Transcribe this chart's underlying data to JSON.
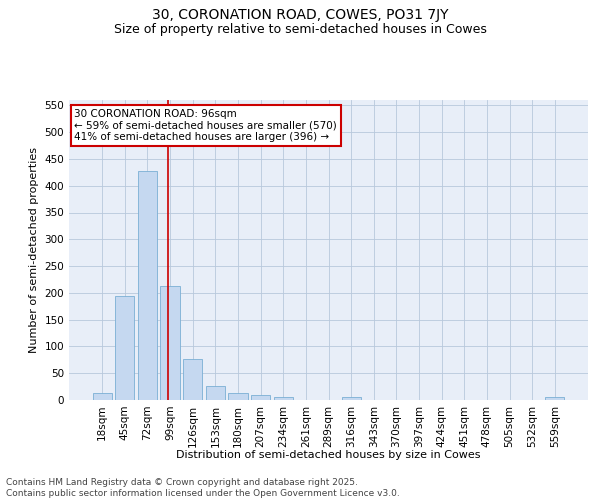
{
  "title": "30, CORONATION ROAD, COWES, PO31 7JY",
  "subtitle": "Size of property relative to semi-detached houses in Cowes",
  "xlabel": "Distribution of semi-detached houses by size in Cowes",
  "ylabel": "Number of semi-detached properties",
  "footer_line1": "Contains HM Land Registry data © Crown copyright and database right 2025.",
  "footer_line2": "Contains public sector information licensed under the Open Government Licence v3.0.",
  "bin_labels": [
    "18sqm",
    "45sqm",
    "72sqm",
    "99sqm",
    "126sqm",
    "153sqm",
    "180sqm",
    "207sqm",
    "234sqm",
    "261sqm",
    "289sqm",
    "316sqm",
    "343sqm",
    "370sqm",
    "397sqm",
    "424sqm",
    "451sqm",
    "478sqm",
    "505sqm",
    "532sqm",
    "559sqm"
  ],
  "bar_values": [
    13,
    195,
    428,
    213,
    77,
    27,
    13,
    10,
    5,
    0,
    0,
    5,
    0,
    0,
    0,
    0,
    0,
    0,
    0,
    0,
    5
  ],
  "bar_color": "#c5d8f0",
  "bar_edge_color": "#7bafd4",
  "property_size": 96,
  "property_label": "30 CORONATION ROAD: 96sqm",
  "pct_smaller": 59,
  "count_smaller": 570,
  "pct_larger": 41,
  "count_larger": 396,
  "vline_color": "#cc0000",
  "annotation_box_color": "#cc0000",
  "ylim": [
    0,
    560
  ],
  "yticks": [
    0,
    50,
    100,
    150,
    200,
    250,
    300,
    350,
    400,
    450,
    500,
    550
  ],
  "bg_color": "#e8eef8",
  "grid_color": "#b8c8dc",
  "title_fontsize": 10,
  "subtitle_fontsize": 9,
  "axis_label_fontsize": 8,
  "tick_fontsize": 7.5,
  "annotation_fontsize": 7.5,
  "footer_fontsize": 6.5
}
